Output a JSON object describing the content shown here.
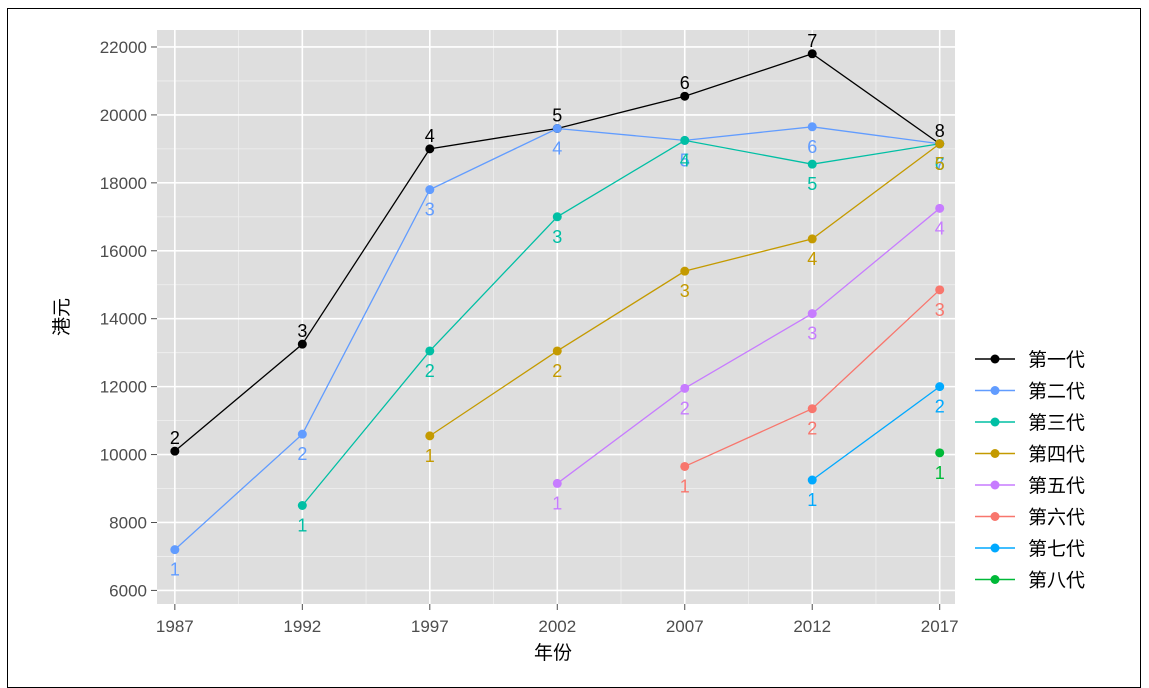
{
  "chart_data": {
    "type": "line",
    "xlabel": "年份",
    "ylabel": "港元",
    "x": [
      1987,
      1992,
      1997,
      2002,
      2007,
      2012,
      2017
    ],
    "xlim": [
      1986.3,
      2017.6
    ],
    "ylim": [
      5600,
      22500
    ],
    "y_ticks": [
      6000,
      8000,
      10000,
      12000,
      14000,
      16000,
      18000,
      20000,
      22000
    ],
    "grid": true,
    "legend_position": "right",
    "series": [
      {
        "name": "第一代",
        "color": "#000000",
        "points": [
          {
            "x": 1987,
            "y": 10100,
            "label": "2"
          },
          {
            "x": 1992,
            "y": 13250,
            "label": "3"
          },
          {
            "x": 1997,
            "y": 19000,
            "label": "4"
          },
          {
            "x": 2002,
            "y": 19600,
            "label": "5"
          },
          {
            "x": 2007,
            "y": 20550,
            "label": "6"
          },
          {
            "x": 2012,
            "y": 21800,
            "label": "7"
          },
          {
            "x": 2017,
            "y": 19150,
            "label": "8"
          }
        ]
      },
      {
        "name": "第二代",
        "color": "#619cff",
        "points": [
          {
            "x": 1987,
            "y": 7200,
            "label": "1"
          },
          {
            "x": 1992,
            "y": 10600,
            "label": "2"
          },
          {
            "x": 1997,
            "y": 17800,
            "label": "3"
          },
          {
            "x": 2002,
            "y": 19600,
            "label": "4"
          },
          {
            "x": 2007,
            "y": 19250,
            "label": "5"
          },
          {
            "x": 2012,
            "y": 19650,
            "label": "6"
          },
          {
            "x": 2017,
            "y": 19150,
            "label": "7"
          }
        ]
      },
      {
        "name": "第三代",
        "color": "#00bfa4",
        "points": [
          {
            "x": 1992,
            "y": 8500,
            "label": "1"
          },
          {
            "x": 1997,
            "y": 13050,
            "label": "2"
          },
          {
            "x": 2002,
            "y": 17000,
            "label": "3"
          },
          {
            "x": 2007,
            "y": 19250,
            "label": "4"
          },
          {
            "x": 2012,
            "y": 18550,
            "label": "5"
          },
          {
            "x": 2017,
            "y": 19150,
            "label": "6"
          }
        ]
      },
      {
        "name": "第四代",
        "color": "#c49a00",
        "points": [
          {
            "x": 1997,
            "y": 10550,
            "label": "1"
          },
          {
            "x": 2002,
            "y": 13050,
            "label": "2"
          },
          {
            "x": 2007,
            "y": 15400,
            "label": "3"
          },
          {
            "x": 2012,
            "y": 16350,
            "label": "4"
          },
          {
            "x": 2017,
            "y": 19150,
            "label": "5"
          }
        ]
      },
      {
        "name": "第五代",
        "color": "#c77cff",
        "points": [
          {
            "x": 2002,
            "y": 9150,
            "label": "1"
          },
          {
            "x": 2007,
            "y": 11950,
            "label": "2"
          },
          {
            "x": 2012,
            "y": 14150,
            "label": "3"
          },
          {
            "x": 2017,
            "y": 17250,
            "label": "4"
          }
        ]
      },
      {
        "name": "第六代",
        "color": "#f8766d",
        "points": [
          {
            "x": 2007,
            "y": 9650,
            "label": "1"
          },
          {
            "x": 2012,
            "y": 11350,
            "label": "2"
          },
          {
            "x": 2017,
            "y": 14850,
            "label": "3"
          }
        ]
      },
      {
        "name": "第七代",
        "color": "#00a9ff",
        "points": [
          {
            "x": 2012,
            "y": 9250,
            "label": "1"
          },
          {
            "x": 2017,
            "y": 12000,
            "label": "2"
          }
        ]
      },
      {
        "name": "第八代",
        "color": "#00b938",
        "points": [
          {
            "x": 2017,
            "y": 10050,
            "label": "1"
          }
        ]
      }
    ]
  }
}
